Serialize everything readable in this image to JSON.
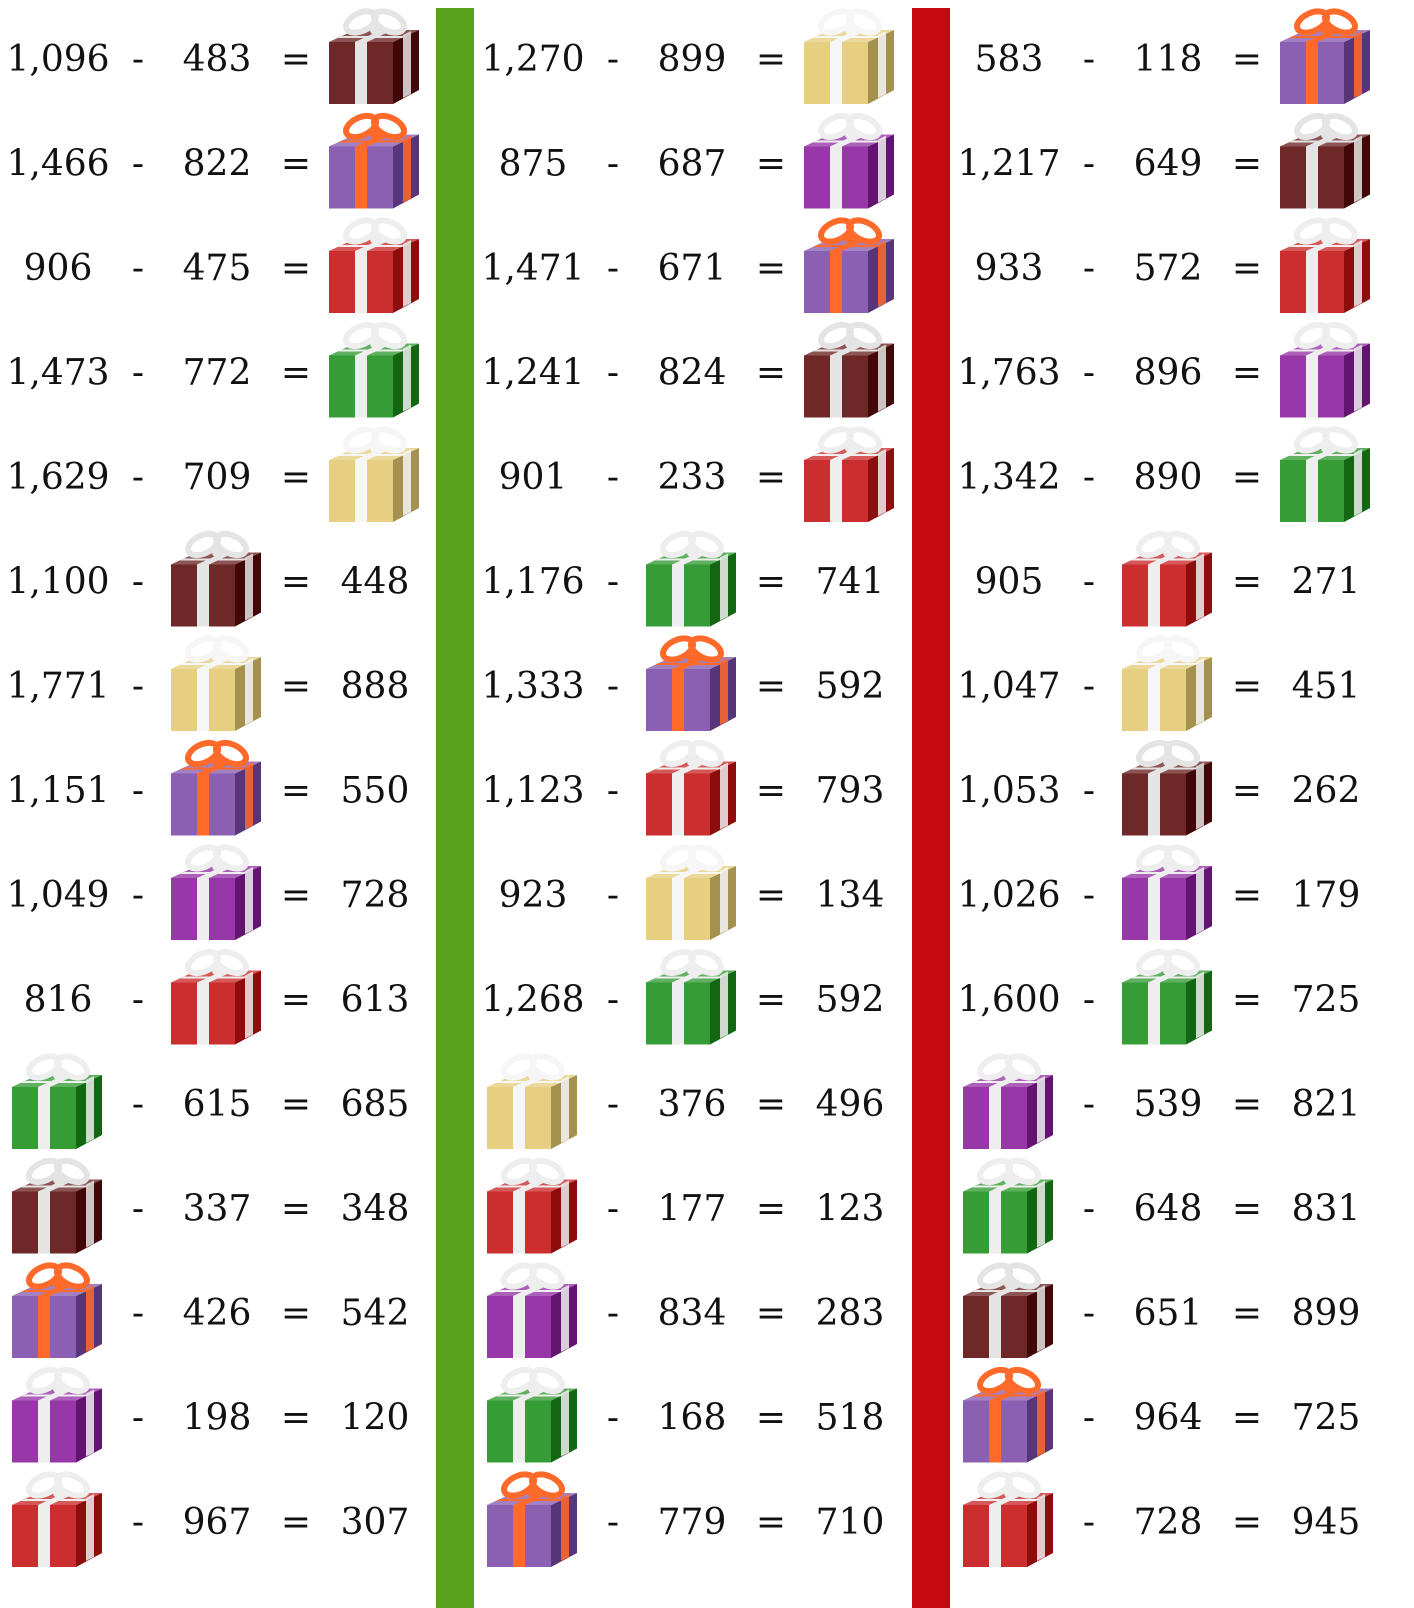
{
  "minus": "-",
  "equals": "=",
  "columns": [
    {
      "rows": [
        {
          "terms": [
            "1,096",
            "483",
            null
          ],
          "gift": {
            "box": "#5c0b0b",
            "ribbon": "#e4e4e4"
          }
        },
        {
          "terms": [
            "1,466",
            "822",
            null
          ],
          "gift": {
            "box": "#7b4aa8",
            "ribbon": "#ff6a2a"
          }
        },
        {
          "terms": [
            "906",
            "475",
            null
          ],
          "gift": {
            "box": "#c41212",
            "ribbon": "#eeeeee"
          }
        },
        {
          "terms": [
            "1,473",
            "772",
            null
          ],
          "gift": {
            "box": "#1b8f1b",
            "ribbon": "#eeeeee"
          }
        },
        {
          "terms": [
            "1,629",
            "709",
            null
          ],
          "gift": {
            "box": "#e3c970",
            "ribbon": "#f6f6f6"
          }
        },
        {
          "terms": [
            "1,100",
            null,
            "448"
          ],
          "gift": {
            "box": "#5c0b0b",
            "ribbon": "#e4e4e4"
          }
        },
        {
          "terms": [
            "1,771",
            null,
            "888"
          ],
          "gift": {
            "box": "#e3c970",
            "ribbon": "#f6f6f6"
          }
        },
        {
          "terms": [
            "1,151",
            null,
            "550"
          ],
          "gift": {
            "box": "#7b4aa8",
            "ribbon": "#ff6a2a"
          }
        },
        {
          "terms": [
            "1,049",
            null,
            "728"
          ],
          "gift": {
            "box": "#8a1c9c",
            "ribbon": "#eeeeee"
          }
        },
        {
          "terms": [
            "816",
            null,
            "613"
          ],
          "gift": {
            "box": "#c41212",
            "ribbon": "#eeeeee"
          }
        },
        {
          "terms": [
            null,
            "615",
            "685"
          ],
          "gift": {
            "box": "#1b8f1b",
            "ribbon": "#eeeeee"
          }
        },
        {
          "terms": [
            null,
            "337",
            "348"
          ],
          "gift": {
            "box": "#5c0b0b",
            "ribbon": "#e4e4e4"
          }
        },
        {
          "terms": [
            null,
            "426",
            "542"
          ],
          "gift": {
            "box": "#7b4aa8",
            "ribbon": "#ff6a2a"
          }
        },
        {
          "terms": [
            null,
            "198",
            "120"
          ],
          "gift": {
            "box": "#8a1c9c",
            "ribbon": "#eeeeee"
          }
        },
        {
          "terms": [
            null,
            "967",
            "307"
          ],
          "gift": {
            "box": "#c41212",
            "ribbon": "#eeeeee"
          }
        }
      ]
    },
    {
      "rows": [
        {
          "terms": [
            "1,270",
            "899",
            null
          ],
          "gift": {
            "box": "#e3c970",
            "ribbon": "#f6f6f6"
          }
        },
        {
          "terms": [
            "875",
            "687",
            null
          ],
          "gift": {
            "box": "#8a1c9c",
            "ribbon": "#eeeeee"
          }
        },
        {
          "terms": [
            "1,471",
            "671",
            null
          ],
          "gift": {
            "box": "#7b4aa8",
            "ribbon": "#ff6a2a"
          }
        },
        {
          "terms": [
            "1,241",
            "824",
            null
          ],
          "gift": {
            "box": "#5c0b0b",
            "ribbon": "#e4e4e4"
          }
        },
        {
          "terms": [
            "901",
            "233",
            null
          ],
          "gift": {
            "box": "#c41212",
            "ribbon": "#eeeeee"
          }
        },
        {
          "terms": [
            "1,176",
            null,
            "741"
          ],
          "gift": {
            "box": "#1b8f1b",
            "ribbon": "#eeeeee"
          }
        },
        {
          "terms": [
            "1,333",
            null,
            "592"
          ],
          "gift": {
            "box": "#7b4aa8",
            "ribbon": "#ff6a2a"
          }
        },
        {
          "terms": [
            "1,123",
            null,
            "793"
          ],
          "gift": {
            "box": "#c41212",
            "ribbon": "#eeeeee"
          }
        },
        {
          "terms": [
            "923",
            null,
            "134"
          ],
          "gift": {
            "box": "#e3c970",
            "ribbon": "#f6f6f6"
          }
        },
        {
          "terms": [
            "1,268",
            null,
            "592"
          ],
          "gift": {
            "box": "#1b8f1b",
            "ribbon": "#eeeeee"
          }
        },
        {
          "terms": [
            null,
            "376",
            "496"
          ],
          "gift": {
            "box": "#e3c970",
            "ribbon": "#f6f6f6"
          }
        },
        {
          "terms": [
            null,
            "177",
            "123"
          ],
          "gift": {
            "box": "#c41212",
            "ribbon": "#eeeeee"
          }
        },
        {
          "terms": [
            null,
            "834",
            "283"
          ],
          "gift": {
            "box": "#8a1c9c",
            "ribbon": "#eeeeee"
          }
        },
        {
          "terms": [
            null,
            "168",
            "518"
          ],
          "gift": {
            "box": "#1b8f1b",
            "ribbon": "#eeeeee"
          }
        },
        {
          "terms": [
            null,
            "779",
            "710"
          ],
          "gift": {
            "box": "#7b4aa8",
            "ribbon": "#ff6a2a"
          }
        }
      ]
    },
    {
      "rows": [
        {
          "terms": [
            "583",
            "118",
            null
          ],
          "gift": {
            "box": "#7b4aa8",
            "ribbon": "#ff6a2a"
          }
        },
        {
          "terms": [
            "1,217",
            "649",
            null
          ],
          "gift": {
            "box": "#5c0b0b",
            "ribbon": "#e4e4e4"
          }
        },
        {
          "terms": [
            "933",
            "572",
            null
          ],
          "gift": {
            "box": "#c41212",
            "ribbon": "#eeeeee"
          }
        },
        {
          "terms": [
            "1,763",
            "896",
            null
          ],
          "gift": {
            "box": "#8a1c9c",
            "ribbon": "#eeeeee"
          }
        },
        {
          "terms": [
            "1,342",
            "890",
            null
          ],
          "gift": {
            "box": "#1b8f1b",
            "ribbon": "#eeeeee"
          }
        },
        {
          "terms": [
            "905",
            null,
            "271"
          ],
          "gift": {
            "box": "#c41212",
            "ribbon": "#eeeeee"
          }
        },
        {
          "terms": [
            "1,047",
            null,
            "451"
          ],
          "gift": {
            "box": "#e3c970",
            "ribbon": "#f6f6f6"
          }
        },
        {
          "terms": [
            "1,053",
            null,
            "262"
          ],
          "gift": {
            "box": "#5c0b0b",
            "ribbon": "#e4e4e4"
          }
        },
        {
          "terms": [
            "1,026",
            null,
            "179"
          ],
          "gift": {
            "box": "#8a1c9c",
            "ribbon": "#eeeeee"
          }
        },
        {
          "terms": [
            "1,600",
            null,
            "725"
          ],
          "gift": {
            "box": "#1b8f1b",
            "ribbon": "#eeeeee"
          }
        },
        {
          "terms": [
            null,
            "539",
            "821"
          ],
          "gift": {
            "box": "#8a1c9c",
            "ribbon": "#eeeeee"
          }
        },
        {
          "terms": [
            null,
            "648",
            "831"
          ],
          "gift": {
            "box": "#1b8f1b",
            "ribbon": "#eeeeee"
          }
        },
        {
          "terms": [
            null,
            "651",
            "899"
          ],
          "gift": {
            "box": "#5c0b0b",
            "ribbon": "#e4e4e4"
          }
        },
        {
          "terms": [
            null,
            "964",
            "725"
          ],
          "gift": {
            "box": "#7b4aa8",
            "ribbon": "#ff6a2a"
          }
        },
        {
          "terms": [
            null,
            "728",
            "945"
          ],
          "gift": {
            "box": "#c41212",
            "ribbon": "#eeeeee"
          }
        }
      ]
    }
  ]
}
